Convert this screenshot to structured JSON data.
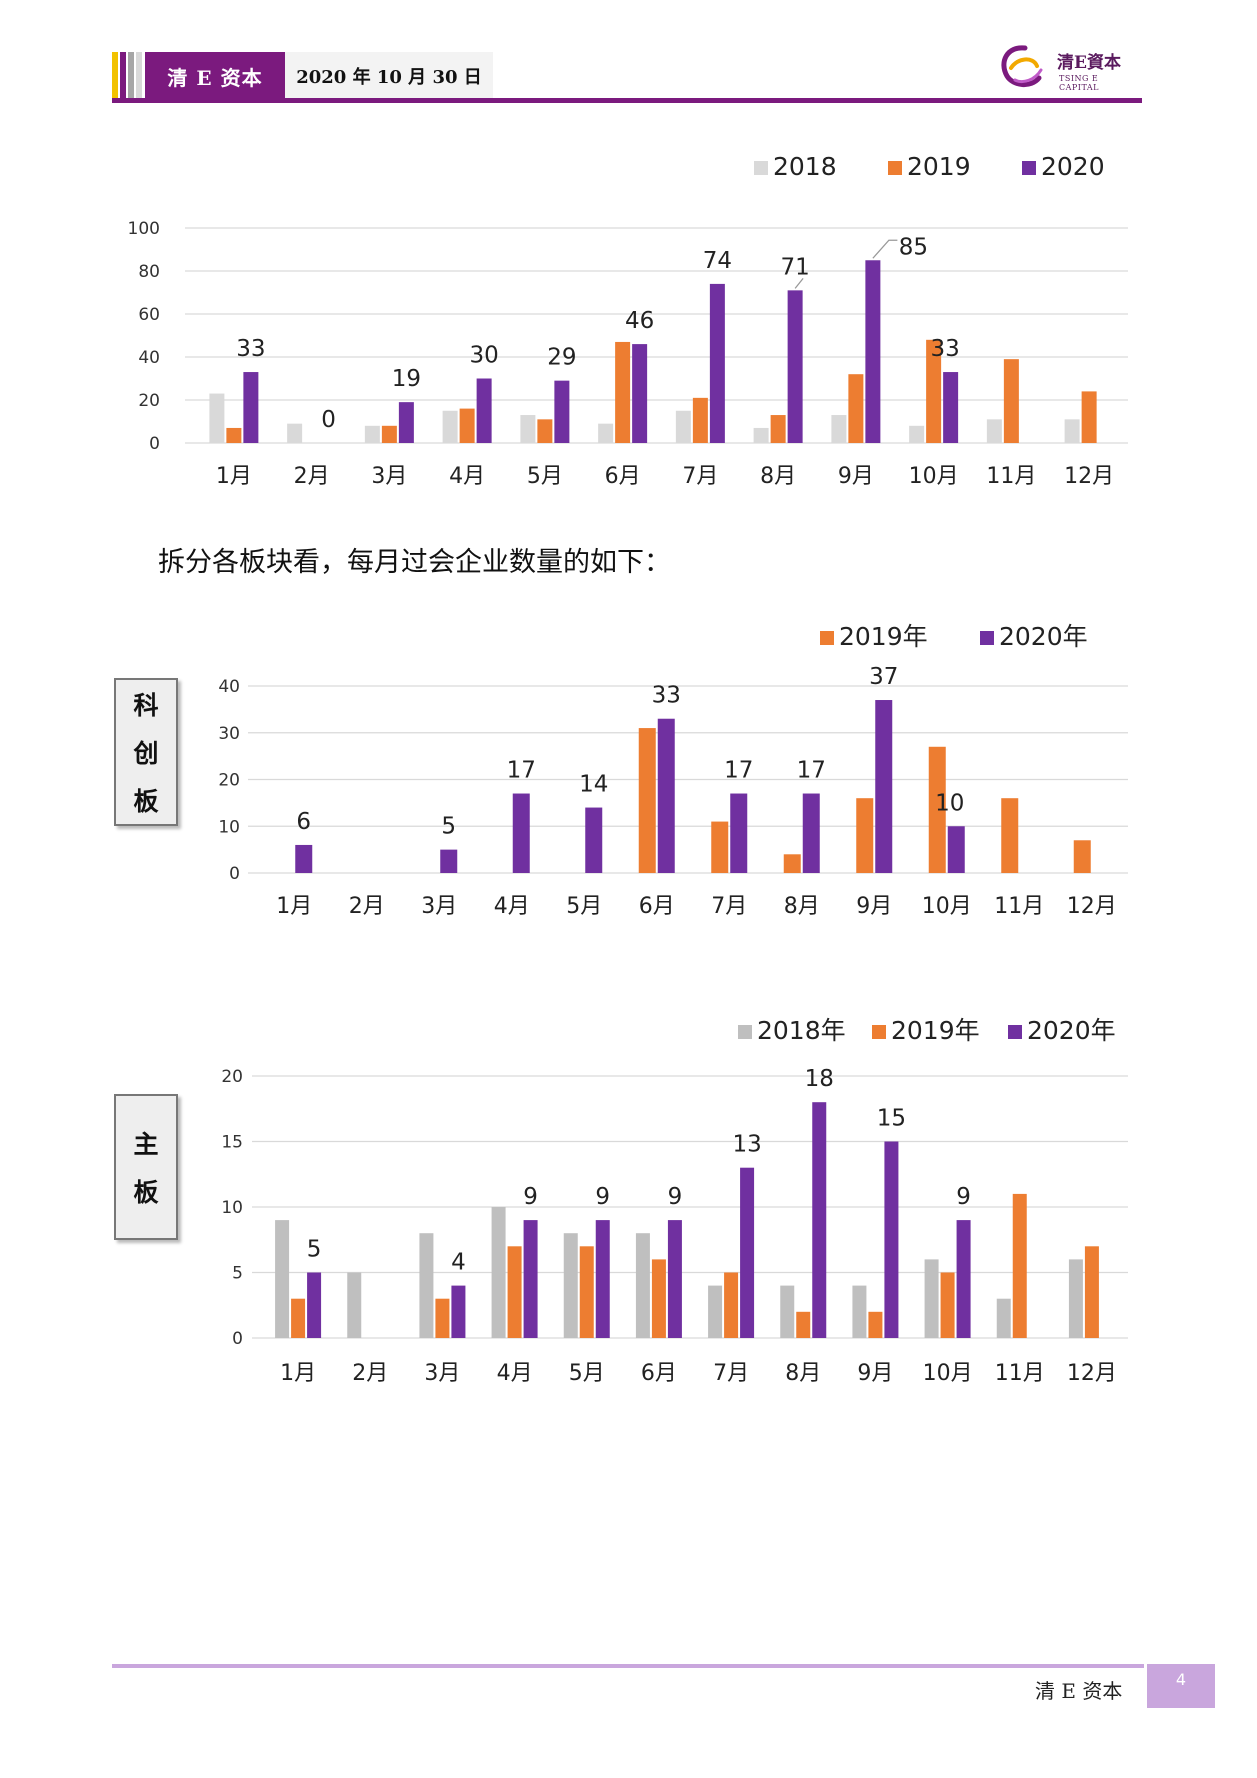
{
  "header": {
    "brand": "清 E 资本",
    "date": "2020 年 10 月 30 日"
  },
  "logo": {
    "cn": "清E資本",
    "en": "TSING E CAPITAL"
  },
  "colors": {
    "purple": "#7030A0",
    "orange": "#ED7D31",
    "gray_light": "#D9D9D9",
    "gray": "#BFBFBF",
    "brand": "#7B1A7E",
    "footer": "#C9A6DD"
  },
  "text": {
    "note": "拆分各板块看，每月过会企业数量的如下："
  },
  "side_labels": {
    "kechuang": [
      "科",
      "创",
      "板"
    ],
    "zhuban": [
      "主",
      "板"
    ]
  },
  "footer": {
    "brand": "清 E 资本",
    "page": "4"
  },
  "chart_data": [
    {
      "type": "bar",
      "categories": [
        "1月",
        "2月",
        "3月",
        "4月",
        "5月",
        "6月",
        "7月",
        "8月",
        "9月",
        "10月",
        "11月",
        "12月"
      ],
      "ylim": [
        0,
        100
      ],
      "yticks": [
        0,
        20,
        40,
        60,
        80,
        100
      ],
      "grid": true,
      "legend": "top-right",
      "series": [
        {
          "name": "2018",
          "color": "#D9D9D9",
          "values": [
            23,
            9,
            8,
            15,
            13,
            9,
            15,
            7,
            13,
            8,
            11,
            11
          ],
          "labels": false
        },
        {
          "name": "2019",
          "color": "#ED7D31",
          "values": [
            7,
            0,
            8,
            16,
            11,
            47,
            21,
            13,
            32,
            48,
            39,
            24
          ],
          "labels": false
        },
        {
          "name": "2020",
          "color": "#7030A0",
          "values": [
            33,
            0,
            19,
            30,
            29,
            46,
            74,
            71,
            85,
            33,
            null,
            null
          ],
          "labels": true
        }
      ]
    },
    {
      "type": "bar",
      "categories": [
        "1月",
        "2月",
        "3月",
        "4月",
        "5月",
        "6月",
        "7月",
        "8月",
        "9月",
        "10月",
        "11月",
        "12月"
      ],
      "ylim": [
        0,
        40
      ],
      "yticks": [
        0,
        10,
        20,
        30,
        40
      ],
      "grid": true,
      "legend": "top-right",
      "series": [
        {
          "name": "2019年",
          "color": "#ED7D31",
          "values": [
            0,
            0,
            0,
            0,
            0,
            31,
            11,
            4,
            16,
            27,
            16,
            7
          ],
          "labels": false
        },
        {
          "name": "2020年",
          "color": "#7030A0",
          "values": [
            6,
            null,
            5,
            17,
            14,
            33,
            17,
            17,
            37,
            10,
            null,
            null
          ],
          "labels": true
        }
      ]
    },
    {
      "type": "bar",
      "categories": [
        "1月",
        "2月",
        "3月",
        "4月",
        "5月",
        "6月",
        "7月",
        "8月",
        "9月",
        "10月",
        "11月",
        "12月"
      ],
      "ylim": [
        0,
        20
      ],
      "yticks": [
        0,
        5,
        10,
        15,
        20
      ],
      "grid": true,
      "legend": "top-right",
      "series": [
        {
          "name": "2018年",
          "color": "#BFBFBF",
          "values": [
            9,
            5,
            8,
            10,
            8,
            8,
            4,
            4,
            4,
            6,
            3,
            6
          ],
          "labels": false
        },
        {
          "name": "2019年",
          "color": "#ED7D31",
          "values": [
            3,
            0,
            3,
            7,
            7,
            6,
            5,
            2,
            2,
            5,
            11,
            7
          ],
          "labels": false
        },
        {
          "name": "2020年",
          "color": "#7030A0",
          "values": [
            5,
            null,
            4,
            9,
            9,
            9,
            13,
            18,
            15,
            9,
            null,
            null
          ],
          "labels": true
        }
      ]
    }
  ]
}
